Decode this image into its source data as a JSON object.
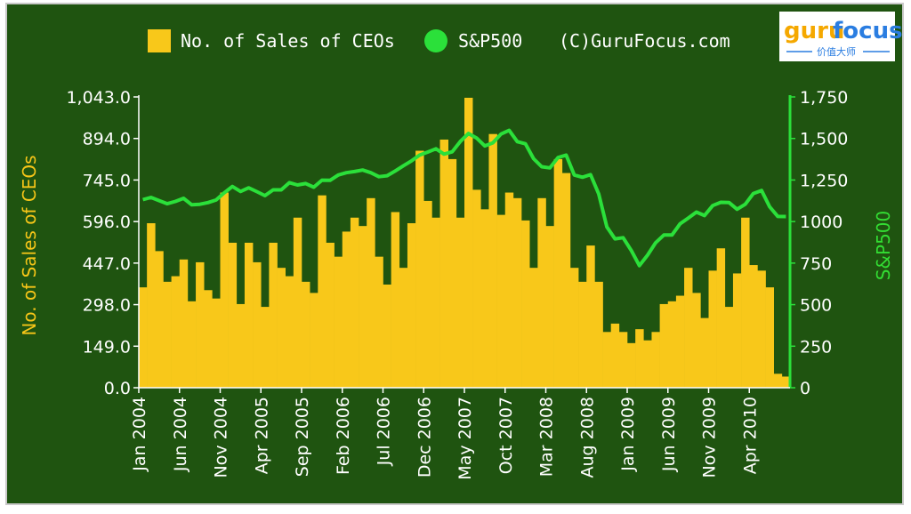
{
  "legend": {
    "bar_label": "No. of Sales of CEOs",
    "line_label": "S&P500",
    "copyright": "(C)GuruFocus.com"
  },
  "logo": {
    "part1": "guru",
    "part2": "focus",
    "subtitle": "价值大师"
  },
  "colors": {
    "background": "#1f5410",
    "bars": "#f8c81a",
    "line": "#2be03a",
    "text": "#ffffff"
  },
  "chart_data": {
    "type": "bar+line",
    "ylabel_left": "No. of Sales of CEOs",
    "ylabel_right": "S&P500",
    "ylim_left": [
      0,
      1043
    ],
    "ylim_right": [
      0,
      1750
    ],
    "y_ticks_left": [
      "0.0",
      "149.0",
      "298.0",
      "447.0",
      "596.0",
      "745.0",
      "894.0",
      "1,043.0"
    ],
    "y_ticks_right": [
      "0",
      "250",
      "500",
      "750",
      "1000",
      "1,250",
      "1,500",
      "1,750"
    ],
    "x_tick_labels": [
      "Jan 2004",
      "Jun 2004",
      "Nov 2004",
      "Apr 2005",
      "Sep 2005",
      "Feb 2006",
      "Jul 2006",
      "Dec 2006",
      "May 2007",
      "Oct 2007",
      "Mar 2008",
      "Aug 2008",
      "Jan 2009",
      "Jun 2009",
      "Nov 2009",
      "Apr 2010"
    ],
    "x_tick_index": [
      0,
      5,
      10,
      15,
      20,
      25,
      30,
      35,
      40,
      45,
      50,
      55,
      60,
      65,
      70,
      75
    ],
    "months_count": 80,
    "series": [
      {
        "name": "No. of Sales of CEOs",
        "type": "bar",
        "values": [
          360,
          590,
          490,
          380,
          400,
          460,
          310,
          450,
          350,
          320,
          700,
          520,
          300,
          520,
          450,
          290,
          520,
          430,
          400,
          610,
          380,
          340,
          690,
          520,
          470,
          560,
          610,
          580,
          680,
          470,
          370,
          630,
          430,
          590,
          850,
          670,
          610,
          890,
          820,
          610,
          1040,
          710,
          640,
          910,
          620,
          700,
          680,
          600,
          430,
          680,
          580,
          820,
          770,
          430,
          380,
          510,
          380,
          200,
          230,
          200,
          160,
          210,
          170,
          200,
          300,
          310,
          330,
          430,
          340,
          250,
          420,
          500,
          290,
          410,
          610,
          440,
          420,
          360,
          50,
          40
        ]
      },
      {
        "name": "S&P500",
        "type": "line",
        "values": [
          1132,
          1145,
          1126,
          1107,
          1121,
          1140,
          1101,
          1104,
          1114,
          1130,
          1173,
          1211,
          1181,
          1203,
          1180,
          1156,
          1191,
          1191,
          1234,
          1220,
          1229,
          1207,
          1249,
          1248,
          1280,
          1294,
          1301,
          1310,
          1294,
          1270,
          1276,
          1304,
          1336,
          1365,
          1400,
          1418,
          1438,
          1406,
          1420,
          1482,
          1530,
          1503,
          1455,
          1474,
          1527,
          1549,
          1481,
          1468,
          1378,
          1330,
          1323,
          1385,
          1400,
          1280,
          1267,
          1282,
          1166,
          968,
          896,
          903,
          826,
          735,
          798,
          873,
          919,
          919,
          987,
          1021,
          1057,
          1036,
          1096,
          1116,
          1115,
          1074,
          1104,
          1169,
          1187,
          1089,
          1031,
          1030
        ]
      }
    ],
    "grid": false,
    "legend_position": "top"
  }
}
